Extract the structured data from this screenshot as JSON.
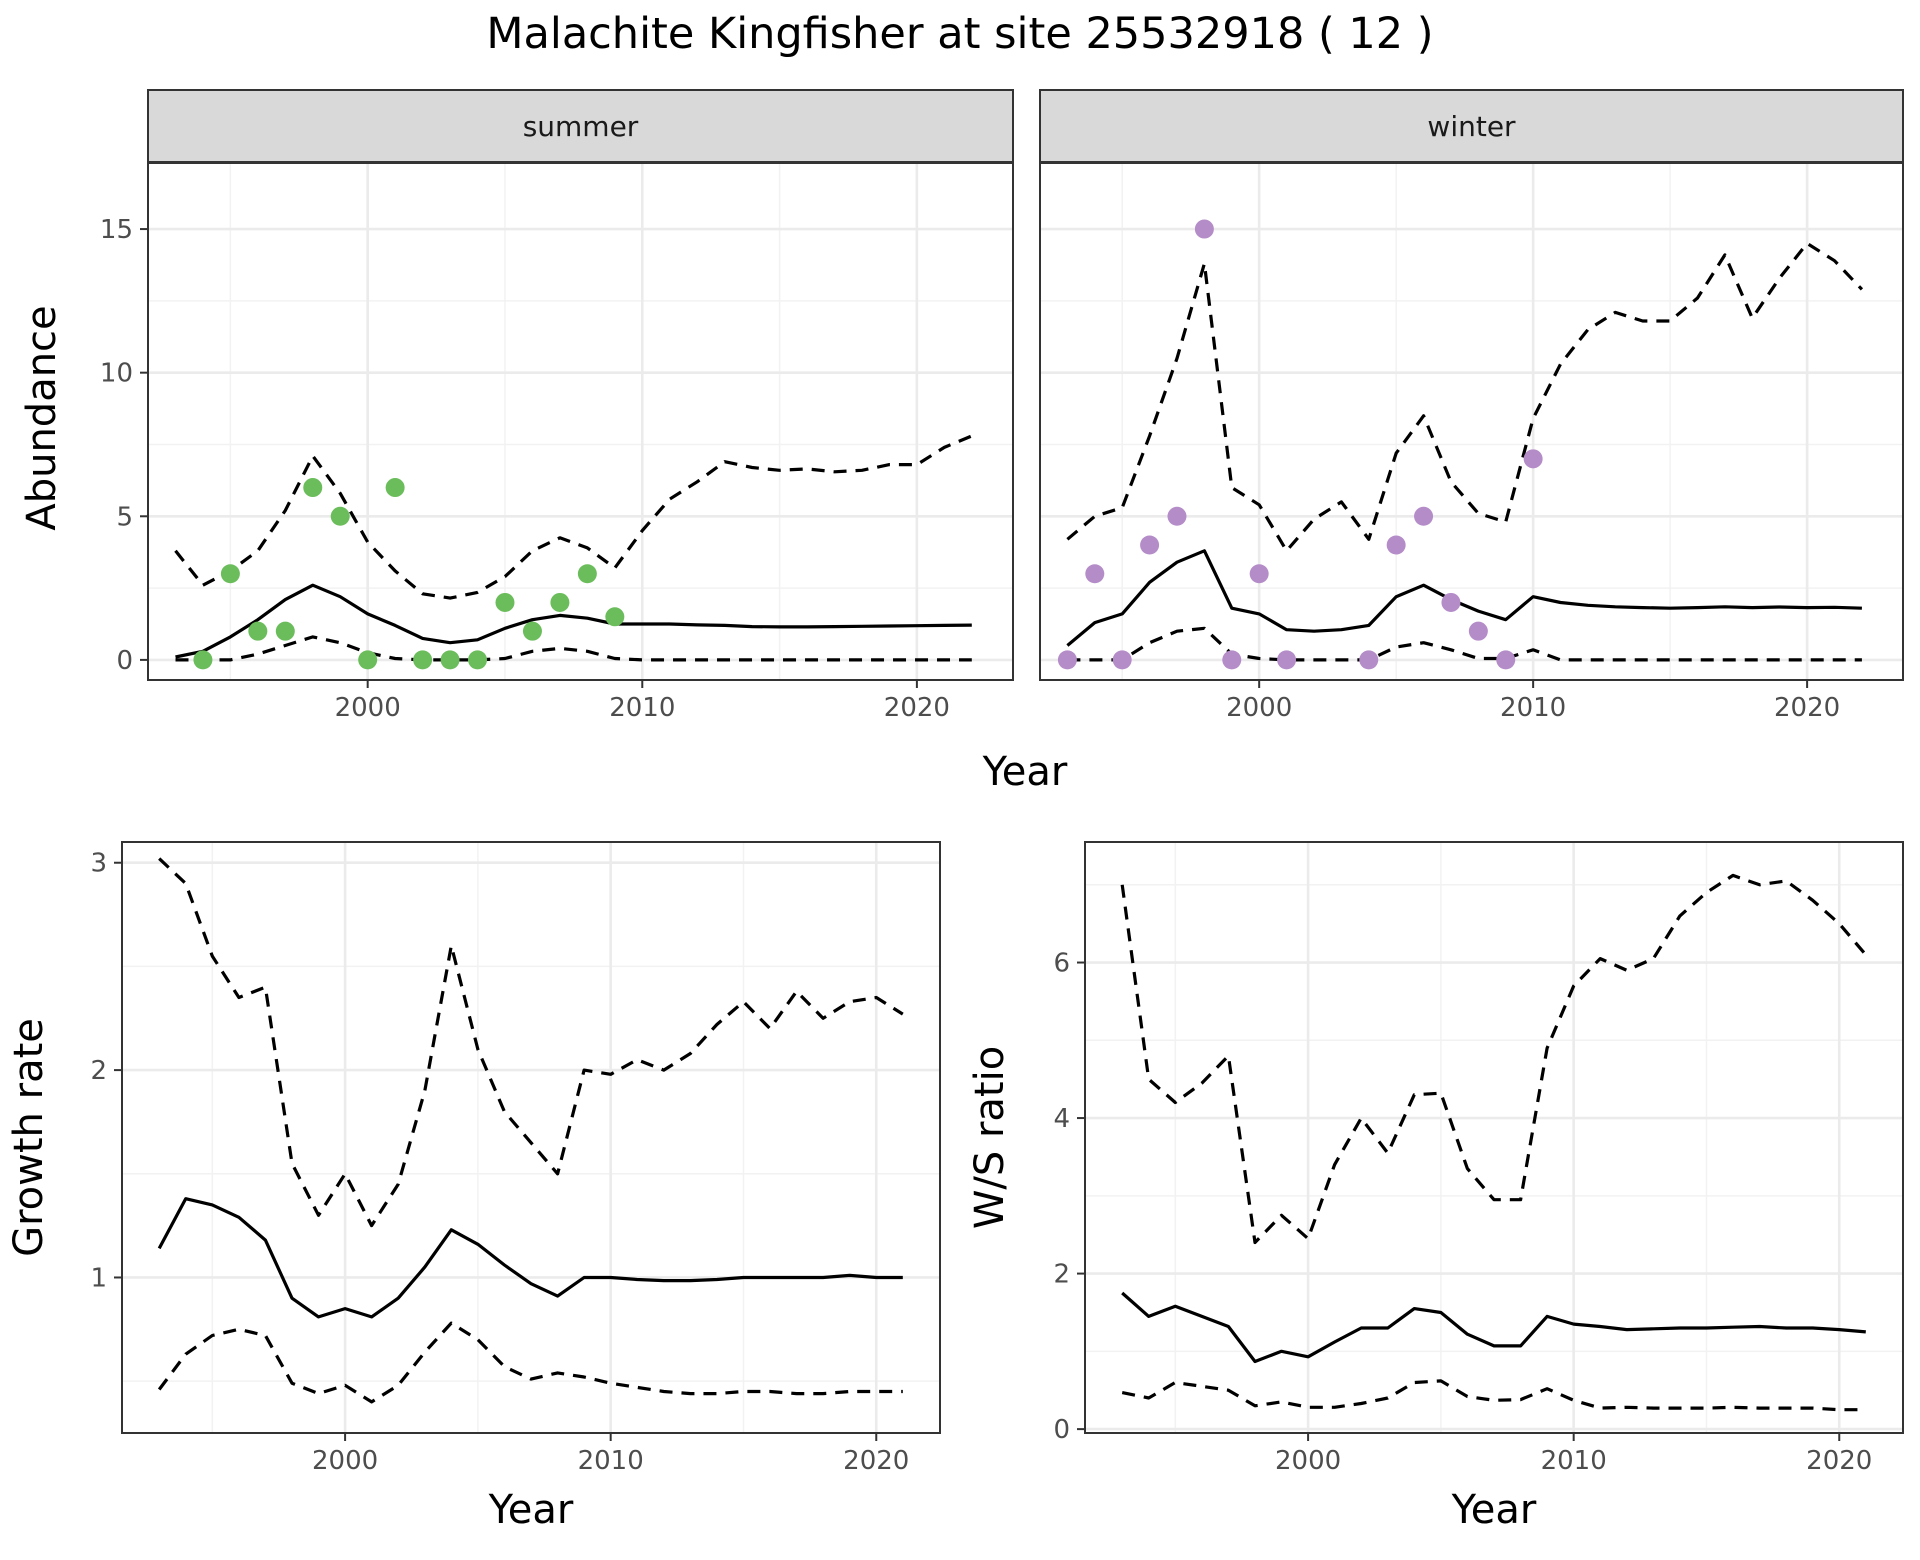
{
  "title": "Malachite Kingfisher at site 25532918 ( 12 )",
  "top_xlabel": "Year",
  "top_ylabel": "Abundance",
  "colors": {
    "summer_points": "#6bbd5b",
    "winter_points": "#b48cc8",
    "lines": "#000000",
    "strip_fill": "#d9d9d9"
  },
  "chart_data": [
    {
      "type": "line",
      "panel": "summer",
      "strip_label": "summer",
      "xlabel": "Year",
      "ylabel": "Abundance",
      "xlim": [
        1992,
        2023.5
      ],
      "ylim": [
        -0.7,
        17.3
      ],
      "x_ticks": [
        2000,
        2010,
        2020
      ],
      "y_ticks": [
        0,
        5,
        10,
        15
      ],
      "grid": true,
      "x": [
        1993,
        1994,
        1995,
        1996,
        1997,
        1998,
        1999,
        2000,
        2001,
        2002,
        2003,
        2004,
        2005,
        2006,
        2007,
        2008,
        2009,
        2010,
        2011,
        2012,
        2013,
        2014,
        2015,
        2016,
        2017,
        2018,
        2019,
        2020,
        2021,
        2022
      ],
      "series": [
        {
          "role": "estimate",
          "style": "solid",
          "values": [
            0.1,
            0.3,
            0.8,
            1.4,
            2.1,
            2.6,
            2.2,
            1.6,
            1.2,
            0.75,
            0.6,
            0.7,
            1.1,
            1.4,
            1.55,
            1.45,
            1.25,
            1.25,
            1.25,
            1.22,
            1.2,
            1.16,
            1.15,
            1.15,
            1.16,
            1.17,
            1.18,
            1.19,
            1.2,
            1.21
          ]
        },
        {
          "role": "upper",
          "style": "dashed",
          "values": [
            3.8,
            2.6,
            3.1,
            3.8,
            5.2,
            7.1,
            5.8,
            4.1,
            3.1,
            2.3,
            2.15,
            2.35,
            2.9,
            3.8,
            4.25,
            3.9,
            3.2,
            4.5,
            5.6,
            6.2,
            6.9,
            6.7,
            6.6,
            6.65,
            6.55,
            6.6,
            6.8,
            6.8,
            7.4,
            7.8
          ]
        },
        {
          "role": "lower",
          "style": "dashed",
          "values": [
            0,
            0,
            0,
            0.2,
            0.5,
            0.8,
            0.6,
            0.25,
            0.05,
            0,
            0,
            0,
            0.05,
            0.3,
            0.4,
            0.3,
            0.05,
            0,
            0,
            0,
            0,
            0,
            0,
            0,
            0,
            0,
            0,
            0,
            0,
            0
          ]
        }
      ],
      "points": {
        "x": [
          1994,
          1995,
          1996,
          1997,
          1998,
          1999,
          2000,
          2001,
          2002,
          2003,
          2004,
          2005,
          2006,
          2007,
          2008,
          2009
        ],
        "y": [
          0,
          3,
          1,
          1,
          6,
          5,
          0,
          6,
          0,
          0,
          0,
          2,
          1,
          2,
          3,
          1.5
        ]
      }
    },
    {
      "type": "line",
      "panel": "winter",
      "strip_label": "winter",
      "xlabel": "Year",
      "ylabel": "Abundance",
      "xlim": [
        1992,
        2023.5
      ],
      "ylim": [
        -0.7,
        17.3
      ],
      "x_ticks": [
        2000,
        2010,
        2020
      ],
      "y_ticks": [
        0,
        5,
        10,
        15
      ],
      "grid": true,
      "x": [
        1993,
        1994,
        1995,
        1996,
        1997,
        1998,
        1999,
        2000,
        2001,
        2002,
        2003,
        2004,
        2005,
        2006,
        2007,
        2008,
        2009,
        2010,
        2011,
        2012,
        2013,
        2014,
        2015,
        2016,
        2017,
        2018,
        2019,
        2020,
        2021,
        2022
      ],
      "series": [
        {
          "role": "estimate",
          "style": "solid",
          "values": [
            0.5,
            1.3,
            1.6,
            2.7,
            3.4,
            3.8,
            1.8,
            1.6,
            1.05,
            1.0,
            1.05,
            1.2,
            2.2,
            2.6,
            2.1,
            1.7,
            1.4,
            2.2,
            2.0,
            1.9,
            1.85,
            1.82,
            1.8,
            1.82,
            1.85,
            1.82,
            1.84,
            1.82,
            1.83,
            1.8
          ]
        },
        {
          "role": "upper",
          "style": "dashed",
          "values": [
            4.2,
            5.0,
            5.3,
            7.8,
            10.5,
            13.8,
            6.0,
            5.4,
            3.8,
            4.9,
            5.5,
            4.2,
            7.2,
            8.5,
            6.2,
            5.1,
            4.8,
            8.4,
            10.3,
            11.5,
            12.1,
            11.8,
            11.8,
            12.6,
            14.1,
            11.9,
            13.3,
            14.5,
            13.9,
            12.9
          ]
        },
        {
          "role": "lower",
          "style": "dashed",
          "values": [
            0,
            0,
            0,
            0.6,
            1.0,
            1.1,
            0.2,
            0.05,
            0,
            0,
            0,
            0,
            0.45,
            0.6,
            0.35,
            0.05,
            0.05,
            0.35,
            0,
            0,
            0,
            0,
            0,
            0,
            0,
            0,
            0,
            0,
            0,
            0
          ]
        }
      ],
      "points": {
        "x": [
          1993,
          1994,
          1995,
          1996,
          1997,
          1998,
          1999,
          2000,
          2001,
          2004,
          2005,
          2006,
          2007,
          2008,
          2009,
          2010
        ],
        "y": [
          0,
          3,
          0,
          4,
          5,
          15,
          0,
          3,
          0,
          0,
          4,
          5,
          2,
          1,
          0,
          7
        ]
      }
    },
    {
      "type": "line",
      "panel": "growth",
      "xlabel": "Year",
      "ylabel": "Growth rate",
      "xlim": [
        1991.6,
        2022.4
      ],
      "ylim": [
        0.25,
        3.1
      ],
      "x_ticks": [
        2000,
        2010,
        2020
      ],
      "y_ticks": [
        1,
        2,
        3
      ],
      "grid": true,
      "x": [
        1993,
        1994,
        1995,
        1996,
        1997,
        1998,
        1999,
        2000,
        2001,
        2002,
        2003,
        2004,
        2005,
        2006,
        2007,
        2008,
        2009,
        2010,
        2011,
        2012,
        2013,
        2014,
        2015,
        2016,
        2017,
        2018,
        2019,
        2020,
        2021
      ],
      "series": [
        {
          "role": "estimate",
          "style": "solid",
          "values": [
            1.14,
            1.38,
            1.35,
            1.29,
            1.18,
            0.9,
            0.81,
            0.85,
            0.81,
            0.9,
            1.05,
            1.23,
            1.16,
            1.06,
            0.97,
            0.91,
            1.0,
            1.0,
            0.99,
            0.985,
            0.985,
            0.99,
            1.0,
            1.0,
            1.0,
            1.0,
            1.01,
            1.0,
            1.0
          ]
        },
        {
          "role": "upper",
          "style": "dashed",
          "values": [
            3.02,
            2.9,
            2.55,
            2.35,
            2.4,
            1.55,
            1.3,
            1.5,
            1.25,
            1.45,
            1.9,
            2.6,
            2.1,
            1.8,
            1.65,
            1.5,
            2.0,
            1.98,
            2.05,
            2.0,
            2.08,
            2.22,
            2.33,
            2.2,
            2.38,
            2.25,
            2.33,
            2.35,
            2.27
          ]
        },
        {
          "role": "lower",
          "style": "dashed",
          "values": [
            0.46,
            0.63,
            0.72,
            0.75,
            0.72,
            0.49,
            0.44,
            0.48,
            0.4,
            0.48,
            0.64,
            0.78,
            0.7,
            0.57,
            0.51,
            0.54,
            0.52,
            0.49,
            0.47,
            0.45,
            0.44,
            0.44,
            0.45,
            0.45,
            0.44,
            0.44,
            0.45,
            0.45,
            0.45
          ]
        }
      ]
    },
    {
      "type": "line",
      "panel": "ws_ratio",
      "xlabel": "Year",
      "ylabel": "W/S ratio",
      "xlim": [
        1991.6,
        2022.4
      ],
      "ylim": [
        -0.05,
        7.55
      ],
      "x_ticks": [
        2000,
        2010,
        2020
      ],
      "y_ticks": [
        0,
        2,
        4,
        6
      ],
      "grid": true,
      "x": [
        1993,
        1994,
        1995,
        1996,
        1997,
        1998,
        1999,
        2000,
        2001,
        2002,
        2003,
        2004,
        2005,
        2006,
        2007,
        2008,
        2009,
        2010,
        2011,
        2012,
        2013,
        2014,
        2015,
        2016,
        2017,
        2018,
        2019,
        2020,
        2021
      ],
      "series": [
        {
          "role": "estimate",
          "style": "solid",
          "values": [
            1.75,
            1.45,
            1.58,
            1.45,
            1.32,
            0.87,
            1.0,
            0.93,
            1.12,
            1.3,
            1.3,
            1.55,
            1.5,
            1.22,
            1.07,
            1.07,
            1.45,
            1.35,
            1.32,
            1.28,
            1.29,
            1.3,
            1.3,
            1.31,
            1.32,
            1.3,
            1.3,
            1.28,
            1.25
          ]
        },
        {
          "role": "upper",
          "style": "dashed",
          "values": [
            7.0,
            4.5,
            4.2,
            4.45,
            4.8,
            2.4,
            2.75,
            2.45,
            3.4,
            4.0,
            3.55,
            4.3,
            4.32,
            3.35,
            2.95,
            2.95,
            4.9,
            5.7,
            6.05,
            5.9,
            6.05,
            6.6,
            6.9,
            7.12,
            7.0,
            7.05,
            6.8,
            6.5,
            6.1
          ]
        },
        {
          "role": "lower",
          "style": "dashed",
          "values": [
            0.47,
            0.4,
            0.6,
            0.55,
            0.5,
            0.3,
            0.35,
            0.28,
            0.28,
            0.33,
            0.4,
            0.6,
            0.62,
            0.42,
            0.37,
            0.38,
            0.52,
            0.37,
            0.27,
            0.28,
            0.27,
            0.27,
            0.27,
            0.28,
            0.27,
            0.27,
            0.27,
            0.25,
            0.25
          ]
        }
      ]
    }
  ]
}
